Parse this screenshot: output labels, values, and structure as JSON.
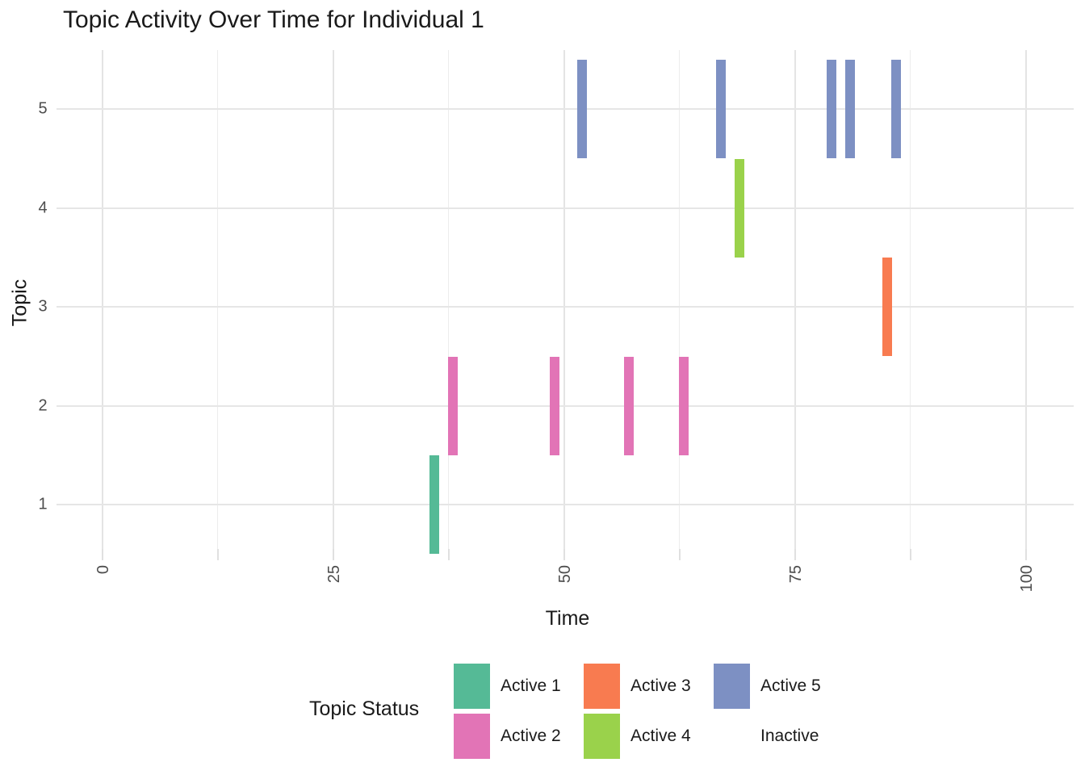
{
  "title": "Topic Activity Over Time for Individual 1",
  "axes": {
    "x_title": "Time",
    "y_title": "Topic",
    "x_tick_labels": [
      "0",
      "25",
      "50",
      "75",
      "100"
    ],
    "y_tick_labels": [
      "1",
      "2",
      "3",
      "4",
      "5"
    ]
  },
  "legend": {
    "title": "Topic Status",
    "entries": [
      {
        "label": "Active 1",
        "color": "#55BA96"
      },
      {
        "label": "Active 2",
        "color": "#E274B6"
      },
      {
        "label": "Active 3",
        "color": "#F87B50"
      },
      {
        "label": "Active 4",
        "color": "#9AD24B"
      },
      {
        "label": "Active 5",
        "color": "#7D90C3"
      },
      {
        "label": "Inactive",
        "color": "#FFFFFF"
      }
    ]
  },
  "chart_data": {
    "type": "heatmap",
    "title": "Topic Activity Over Time for Individual 1",
    "xlabel": "Time",
    "ylabel": "Topic",
    "xlim": [
      0,
      100
    ],
    "ylim": [
      0.5,
      5.5
    ],
    "x_major_ticks": [
      0,
      25,
      50,
      75,
      100
    ],
    "x_minor_ticks": [
      12.5,
      37.5,
      62.5,
      87.5
    ],
    "y_ticks": [
      1,
      2,
      3,
      4,
      5
    ],
    "tile_size": {
      "width": 1,
      "height": 1
    },
    "grid": "light gray major+minor vertical, major horizontal (theme_minimal)",
    "legend_position": "bottom",
    "legend_title": "Topic Status",
    "series": [
      {
        "name": "Active 1",
        "topic": 1,
        "color": "#55BA96",
        "active_times": [
          36
        ]
      },
      {
        "name": "Active 2",
        "topic": 2,
        "color": "#E274B6",
        "active_times": [
          38,
          49,
          57,
          63
        ]
      },
      {
        "name": "Active 3",
        "topic": 3,
        "color": "#F87B50",
        "active_times": [
          85
        ]
      },
      {
        "name": "Active 4",
        "topic": 4,
        "color": "#9AD24B",
        "active_times": [
          69
        ]
      },
      {
        "name": "Active 5",
        "topic": 5,
        "color": "#7D90C3",
        "active_times": [
          52,
          67,
          79,
          81,
          86
        ]
      },
      {
        "name": "Inactive",
        "topic": null,
        "color": "#FFFFFF",
        "active_times": []
      }
    ]
  },
  "colors": {
    "background": "#FFFFFF",
    "grid_major": "#E6E6E6",
    "grid_minor": "#EDEDED",
    "axis_tick": "#E0E0E0",
    "tick_label_text": "#4D4D4D",
    "text": "#1A1A1A"
  }
}
